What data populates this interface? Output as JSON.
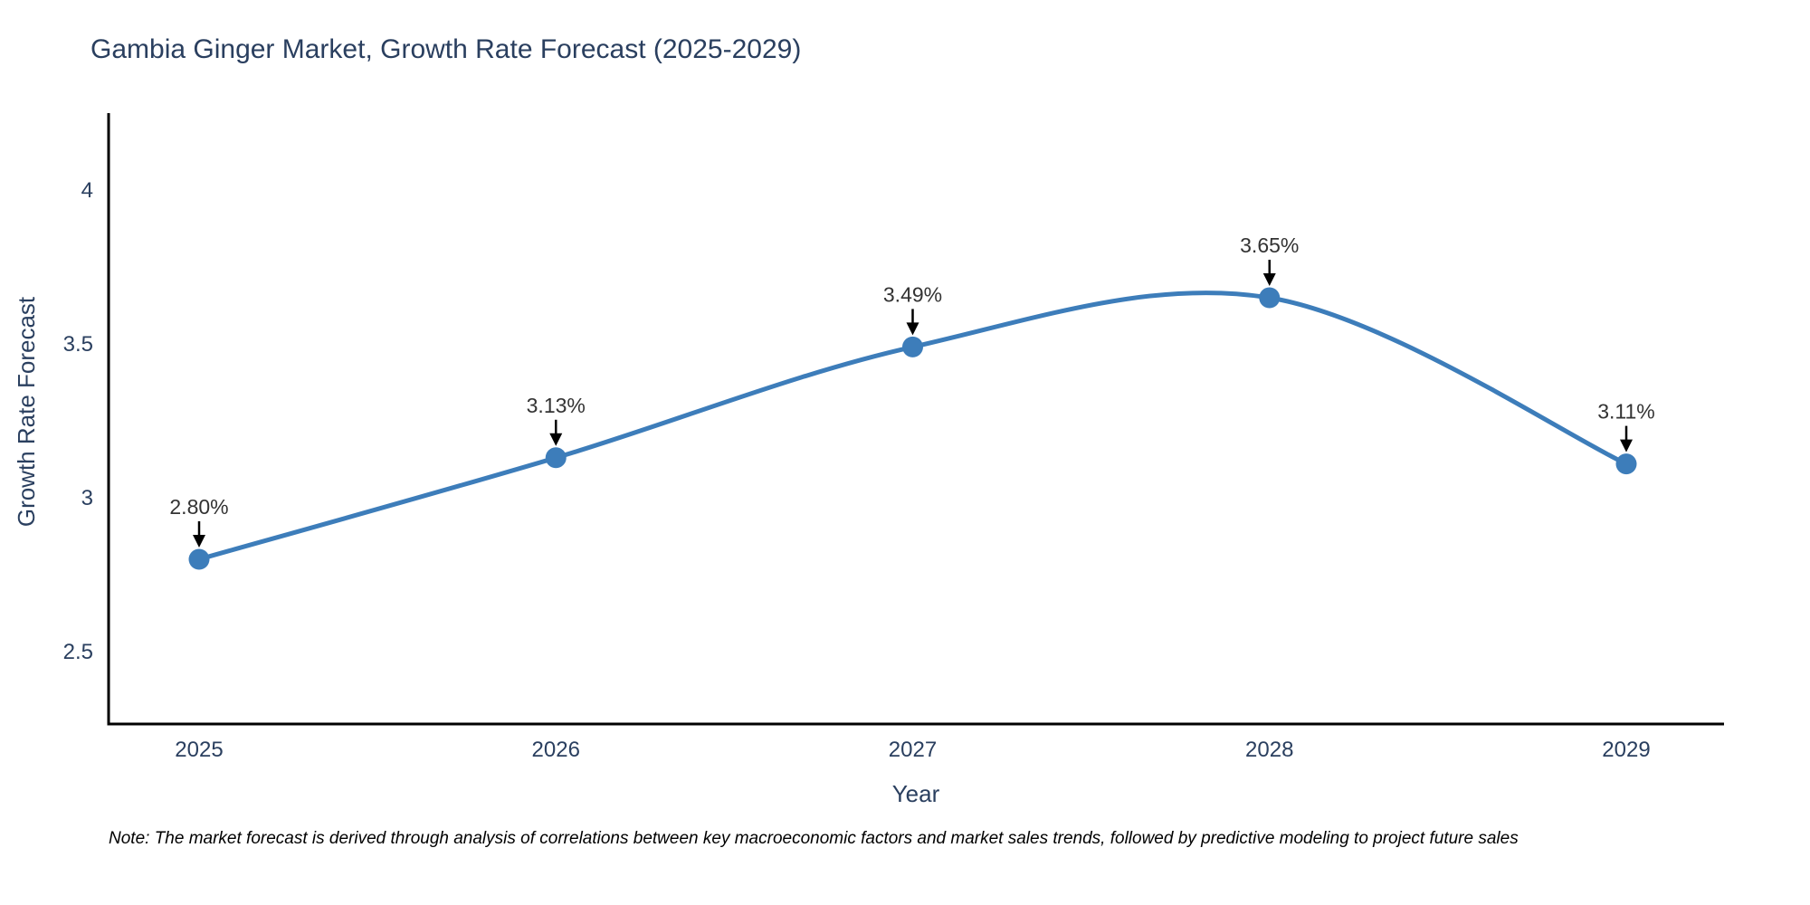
{
  "title": "Gambia Ginger Market, Growth Rate Forecast (2025-2029)",
  "note": "Note: The market forecast is derived through analysis of correlations between key macroeconomic factors and market sales trends, followed by predictive modeling to project future sales",
  "chart_data": {
    "type": "line",
    "title": "Gambia Ginger Market, Growth Rate Forecast (2025-2029)",
    "xlabel": "Year",
    "ylabel": "Growth Rate Forecast",
    "categories": [
      "2025",
      "2026",
      "2027",
      "2028",
      "2029"
    ],
    "series": [
      {
        "name": "Growth Rate Forecast",
        "values": [
          2.8,
          3.13,
          3.49,
          3.65,
          3.11
        ]
      }
    ],
    "point_labels": [
      "2.80%",
      "3.13%",
      "3.49%",
      "3.65%",
      "3.11%"
    ],
    "yticks": [
      2.5,
      3,
      3.5,
      4
    ],
    "ylim": [
      2.25,
      4.25
    ],
    "line_shape": "spline",
    "grid": false,
    "legend": "none",
    "colors": {
      "line": "#3d7dba",
      "marker": "#3d7dba",
      "axis": "#000000",
      "tick_text": "#2a3f5f",
      "annotation_text": "#333333",
      "arrow": "#000000"
    }
  }
}
